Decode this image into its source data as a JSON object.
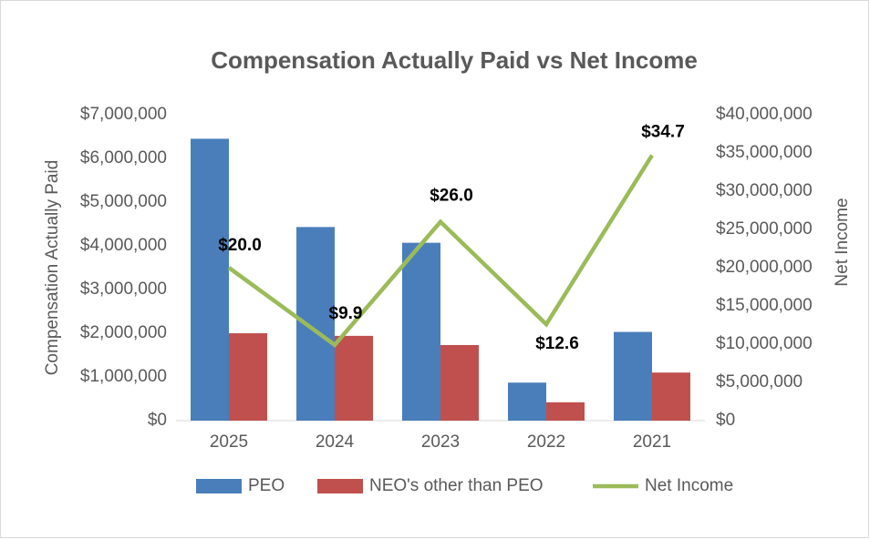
{
  "chart_data": {
    "type": "bar",
    "title": "Compensation Actually Paid vs Net Income",
    "y_label": "Compensation Actually Paid",
    "y2_label": "Net Income",
    "categories": [
      "2025",
      "2024",
      "2023",
      "2022",
      "2021"
    ],
    "series": [
      {
        "name": "PEO",
        "type": "bar",
        "color": "#4a7ebb",
        "values": [
          6450000,
          4430000,
          4070000,
          870000,
          2030000
        ]
      },
      {
        "name": "NEO's other than PEO",
        "type": "bar",
        "color": "#c0504d",
        "values": [
          2000000,
          1940000,
          1730000,
          420000,
          1100000
        ]
      },
      {
        "name": "Net Income",
        "type": "line",
        "axis": "y2",
        "color": "#9bbb59",
        "values": [
          20000000,
          9900000,
          26000000,
          12600000,
          34700000
        ],
        "value_labels": [
          "$20.0",
          "$9.9",
          "$26.0",
          "$12.6",
          "$34.7"
        ]
      }
    ],
    "ylim": [
      0,
      7000000
    ],
    "yticks": [
      {
        "value": 0,
        "label": "$0"
      },
      {
        "value": 1000000,
        "label": "$1,000,000"
      },
      {
        "value": 2000000,
        "label": "$2,000,000"
      },
      {
        "value": 3000000,
        "label": "$3,000,000"
      },
      {
        "value": 4000000,
        "label": "$4,000,000"
      },
      {
        "value": 5000000,
        "label": "$5,000,000"
      },
      {
        "value": 6000000,
        "label": "$6,000,000"
      },
      {
        "value": 7000000,
        "label": "$7,000,000"
      }
    ],
    "y2lim": [
      0,
      40000000
    ],
    "y2ticks": [
      {
        "value": 0,
        "label": "$0"
      },
      {
        "value": 5000000,
        "label": "$5,000,000"
      },
      {
        "value": 10000000,
        "label": "$10,000,000"
      },
      {
        "value": 15000000,
        "label": "$15,000,000"
      },
      {
        "value": 20000000,
        "label": "$20,000,000"
      },
      {
        "value": 25000000,
        "label": "$25,000,000"
      },
      {
        "value": 30000000,
        "label": "$30,000,000"
      },
      {
        "value": 35000000,
        "label": "$35,000,000"
      },
      {
        "value": 40000000,
        "label": "$40,000,000"
      }
    ],
    "legend": "bottom"
  }
}
